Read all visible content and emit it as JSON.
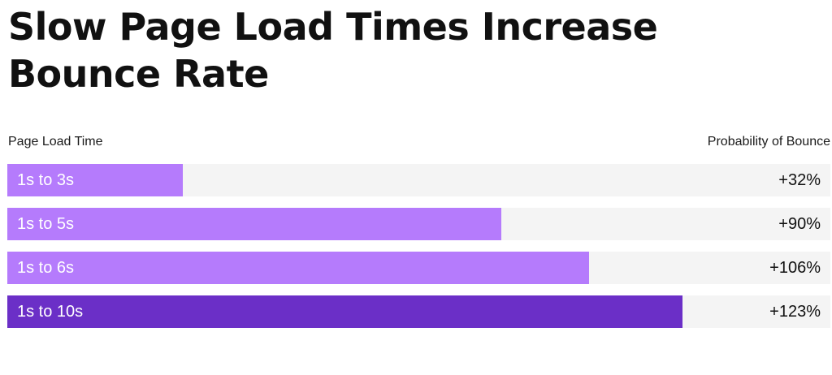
{
  "title": "Slow Page Load Times Increase Bounce Rate",
  "headers": {
    "left": "Page Load Time",
    "right": "Probability of Bounce"
  },
  "colors": {
    "bar_light": "#b57bfc",
    "bar_dark": "#6b2fc7",
    "track": "#f4f4f4"
  },
  "chart_data": {
    "type": "bar",
    "orientation": "horizontal",
    "categories": [
      "1s to 3s",
      "1s to 5s",
      "1s to 6s",
      "1s to 10s"
    ],
    "values": [
      32,
      90,
      106,
      123
    ],
    "value_labels": [
      "+32%",
      "+90%",
      "+106%",
      "+123%"
    ],
    "bar_colors": [
      "#b57bfc",
      "#b57bfc",
      "#b57bfc",
      "#6b2fc7"
    ],
    "title": "Slow Page Load Times Increase Bounce Rate",
    "xlabel": "Probability of Bounce",
    "ylabel": "Page Load Time",
    "xlim": [
      0,
      150
    ],
    "grid": false,
    "legend": "none"
  }
}
